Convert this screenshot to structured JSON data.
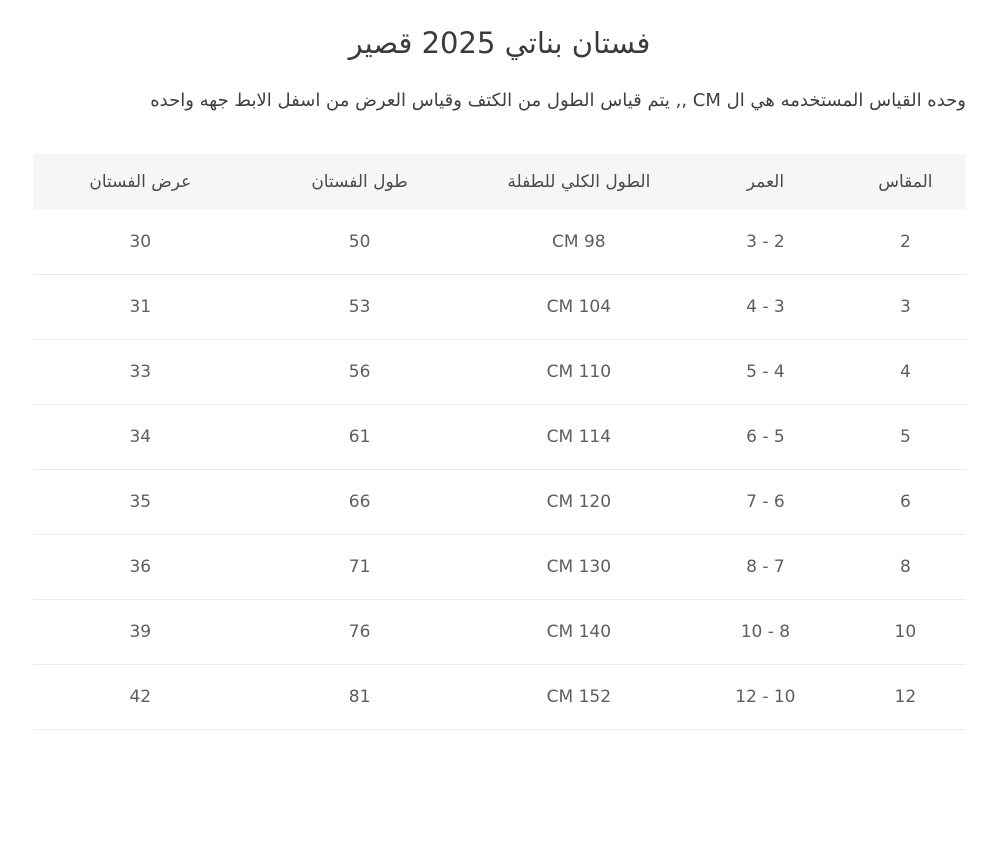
{
  "page": {
    "title": "فستان بناتي 2025 قصير",
    "description": "وحده القياس المستخدمه هي ال CM ,, يتم قياس الطول من الكتف وقياس العرض من اسفل الابط جهه واحده"
  },
  "table": {
    "columns": [
      {
        "label": "المقاس"
      },
      {
        "label": "العمر"
      },
      {
        "label": "الطول الكلي للطفلة"
      },
      {
        "label": "طول الفستان"
      },
      {
        "label": "عرض الفستان"
      }
    ],
    "rows": [
      [
        "2",
        "3 - 2",
        "CM 98",
        "50",
        "30"
      ],
      [
        "3",
        "4 - 3",
        "CM 104",
        "53",
        "31"
      ],
      [
        "4",
        "5 - 4",
        "CM 110",
        "56",
        "33"
      ],
      [
        "5",
        "6 - 5",
        "CM 114",
        "61",
        "34"
      ],
      [
        "6",
        "7 - 6",
        "CM 120",
        "66",
        "35"
      ],
      [
        "8",
        "8 - 7",
        "CM 130",
        "71",
        "36"
      ],
      [
        "10",
        "10 - 8",
        "CM 140",
        "76",
        "39"
      ],
      [
        "12",
        "12 - 10",
        "CM 152",
        "81",
        "42"
      ]
    ]
  },
  "colors": {
    "header_bg": "#f6f6f6",
    "title_text": "#3b3b3b",
    "body_text": "#3f3f3f",
    "cell_text": "#5e5e5e",
    "row_border": "#ebebeb"
  }
}
